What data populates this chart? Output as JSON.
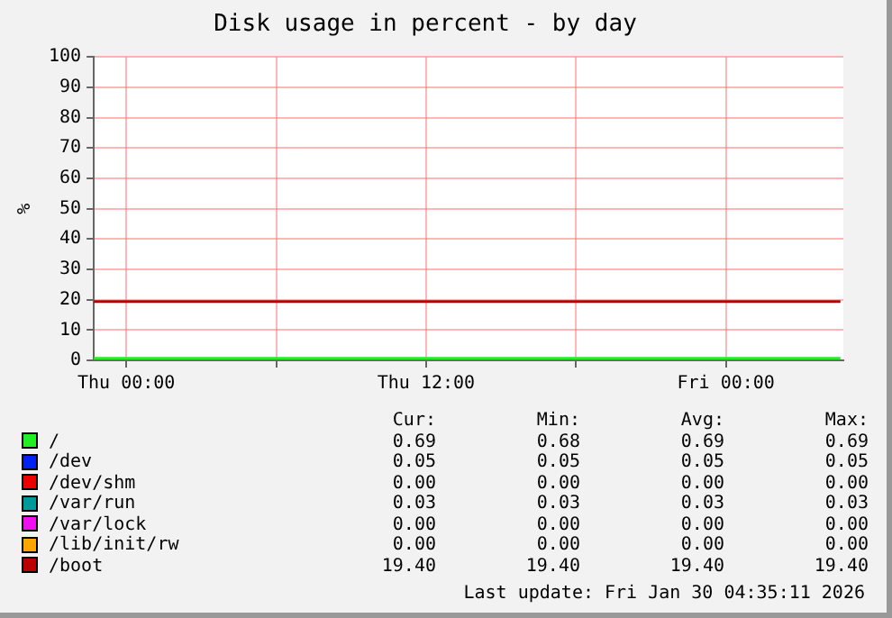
{
  "chart_data": {
    "type": "line",
    "title": "Disk usage in percent - by day",
    "ylabel": "%",
    "x": [
      "2026-01-28T22:42",
      "2026-01-30T04:35"
    ],
    "xlim": [
      "2026-01-28T22:42",
      "2026-01-30T04:42"
    ],
    "xticks": [
      {
        "value": "2026-01-29T00:00",
        "label": "Thu 00:00"
      },
      {
        "value": "2026-01-29T06:00",
        "label": null
      },
      {
        "value": "2026-01-29T12:00",
        "label": "Thu 12:00"
      },
      {
        "value": "2026-01-29T18:00",
        "label": null
      },
      {
        "value": "2026-01-30T00:00",
        "label": "Fri 00:00"
      }
    ],
    "ylim": [
      0,
      100
    ],
    "yticks": [
      0,
      10,
      20,
      30,
      40,
      50,
      60,
      70,
      80,
      90,
      100
    ],
    "grid": true,
    "legend": "bottom",
    "marker": "none",
    "line_style": "solid",
    "series": [
      {
        "name": "/",
        "color": "#22ee22",
        "values": [
          0.69,
          0.69
        ]
      },
      {
        "name": "/dev",
        "color": "#0022ee",
        "values": [
          null,
          null
        ]
      },
      {
        "name": "/dev/shm",
        "color": "#ee0000",
        "values": [
          null,
          null
        ]
      },
      {
        "name": "/var/run",
        "color": "#009999",
        "values": [
          null,
          null
        ]
      },
      {
        "name": "/var/lock",
        "color": "#ee11ee",
        "values": [
          null,
          null
        ]
      },
      {
        "name": "/lib/init/rw",
        "color": "#ffa500",
        "values": [
          null,
          null
        ]
      },
      {
        "name": "/boot",
        "color": "#bb0000",
        "values": [
          19.4,
          19.4
        ]
      }
    ],
    "annotations": [
      "Cur:",
      "Min:",
      "Avg:",
      "Max:",
      "0.69",
      "0.68",
      "0.69",
      "0.69",
      "0.05",
      "0.05",
      "0.05",
      "0.05",
      "0.00",
      "0.00",
      "0.00",
      "0.00",
      "0.03",
      "0.03",
      "0.03",
      "0.03",
      "0.00",
      "0.00",
      "0.00",
      "0.00",
      "0.00",
      "0.00",
      "0.00",
      "0.00",
      "19.40",
      "19.40",
      "19.40",
      "19.40",
      "Last update: Fri Jan 30 04:35:11 2026"
    ]
  }
}
